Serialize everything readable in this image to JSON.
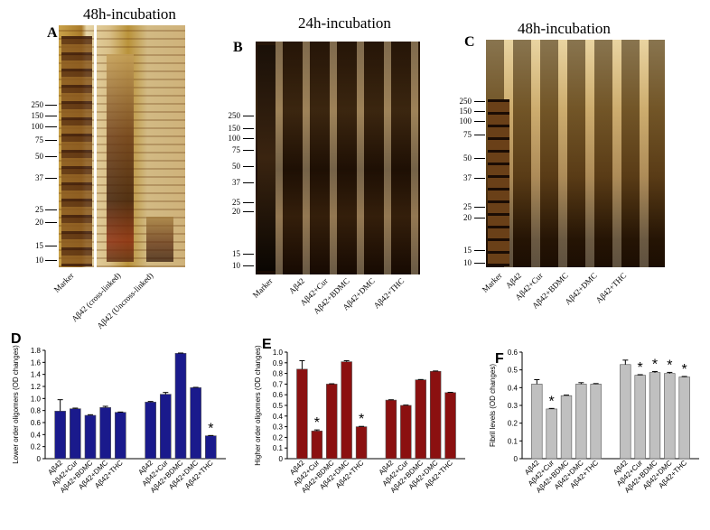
{
  "panels": {
    "A": {
      "letter": "A",
      "title": "48h-incubation",
      "mw_markers": [
        "250",
        "150",
        "100",
        "75",
        "50",
        "37",
        "25",
        "20",
        "15",
        "10"
      ],
      "lanes": [
        "Marker",
        "Aβ42 (cross-linked)",
        "Aβ42 (Uncross-linked)"
      ]
    },
    "B": {
      "letter": "B",
      "title": "24h-incubation",
      "mw_markers": [
        "250",
        "150",
        "100",
        "75",
        "50",
        "37",
        "25",
        "20",
        "15",
        "10"
      ],
      "lanes": [
        "Marker",
        "Aβ42",
        "Aβ42+Cur",
        "Aβ42+BDMC",
        "Aβ42+DMC",
        "Aβ42+THC"
      ]
    },
    "C": {
      "letter": "C",
      "title": "48h-incubation",
      "mw_markers": [
        "250",
        "150",
        "100",
        "75",
        "50",
        "37",
        "25",
        "20",
        "15",
        "10"
      ],
      "lanes": [
        "Marker",
        "Aβ42",
        "Aβ42+Cur",
        "Aβ42+BDMC",
        "Aβ42+DMC",
        "Aβ42+THC"
      ]
    }
  },
  "chart_data": [
    {
      "panel": "D",
      "type": "bar",
      "ylabel": "Lower order oligomers (OD changes)",
      "ylim": [
        0,
        1.8
      ],
      "yticks": [
        "0",
        "0.2",
        "0.4",
        "0.6",
        "0.8",
        "1.0",
        "1.2",
        "1.4",
        "1.6",
        "1.8"
      ],
      "color": "#1a1a8c",
      "groups": [
        {
          "categories": [
            "Aβ42",
            "Aβ42+Cur",
            "Aβ42+BDMC",
            "Aβ42+DMC",
            "Aβ42+THC"
          ],
          "values": [
            0.79,
            0.83,
            0.72,
            0.85,
            0.77
          ],
          "errors": [
            0.19,
            0.01,
            0.01,
            0.02,
            0.005
          ],
          "sig": [
            "",
            "",
            "",
            "",
            ""
          ]
        },
        {
          "categories": [
            "Aβ42",
            "Aβ42+Cur",
            "Aβ42+BDMC",
            "Aβ42+DMC",
            "Aβ42+THC"
          ],
          "values": [
            0.94,
            1.07,
            1.75,
            1.18,
            0.38
          ],
          "errors": [
            0.01,
            0.03,
            0.005,
            0.005,
            0.005
          ],
          "sig": [
            "",
            "",
            "",
            "",
            "*"
          ]
        }
      ]
    },
    {
      "panel": "E",
      "type": "bar",
      "ylabel": "Higher order oligomers (OD changes)",
      "ylim": [
        0,
        1.0
      ],
      "yticks": [
        "0",
        "0.1",
        "0.2",
        "0.3",
        "0.4",
        "0.5",
        "0.6",
        "0.7",
        "0.8",
        "0.9",
        "1.0"
      ],
      "color": "#8b1010",
      "groups": [
        {
          "categories": [
            "Aβ42",
            "Aβ42+Cur",
            "Aβ42+BDMC",
            "Aβ42+DMC",
            "Aβ42+THC"
          ],
          "values": [
            0.84,
            0.26,
            0.7,
            0.91,
            0.3
          ],
          "errors": [
            0.08,
            0.01,
            0.003,
            0.01,
            0.003
          ],
          "sig": [
            "",
            "*",
            "",
            "",
            "*"
          ]
        },
        {
          "categories": [
            "Aβ42",
            "Aβ42+Cur",
            "Aβ42+BDMC",
            "Aβ42+DMC",
            "Aβ42+THC"
          ],
          "values": [
            0.55,
            0.5,
            0.74,
            0.82,
            0.62
          ],
          "errors": [
            0.003,
            0.003,
            0.003,
            0.003,
            0.003
          ],
          "sig": [
            "",
            "",
            "",
            "",
            ""
          ]
        }
      ]
    },
    {
      "panel": "F",
      "type": "bar",
      "ylabel": "Fibril levels (OD changes)",
      "ylim": [
        0,
        0.6
      ],
      "yticks": [
        "0",
        "0.1",
        "0.2",
        "0.3",
        "0.4",
        "0.5",
        "0.6"
      ],
      "color": "#c0c0c0",
      "groups": [
        {
          "categories": [
            "Aβ42",
            "Aβ42+Cur",
            "Aβ42+BDMC",
            "Aβ42+DMC",
            "Aβ42+THC"
          ],
          "values": [
            0.42,
            0.28,
            0.355,
            0.42,
            0.42
          ],
          "errors": [
            0.025,
            0.003,
            0.003,
            0.008,
            0.003
          ],
          "sig": [
            "",
            "*",
            "",
            "",
            ""
          ]
        },
        {
          "categories": [
            "Aβ42",
            "Aβ42+Cur",
            "Aβ42+BDMC",
            "Aβ42+DMC",
            "Aβ42+THC"
          ],
          "values": [
            0.53,
            0.47,
            0.485,
            0.48,
            0.46
          ],
          "errors": [
            0.025,
            0.003,
            0.006,
            0.006,
            0.003
          ],
          "sig": [
            "",
            "*",
            "*",
            "*",
            "*"
          ]
        }
      ]
    }
  ]
}
